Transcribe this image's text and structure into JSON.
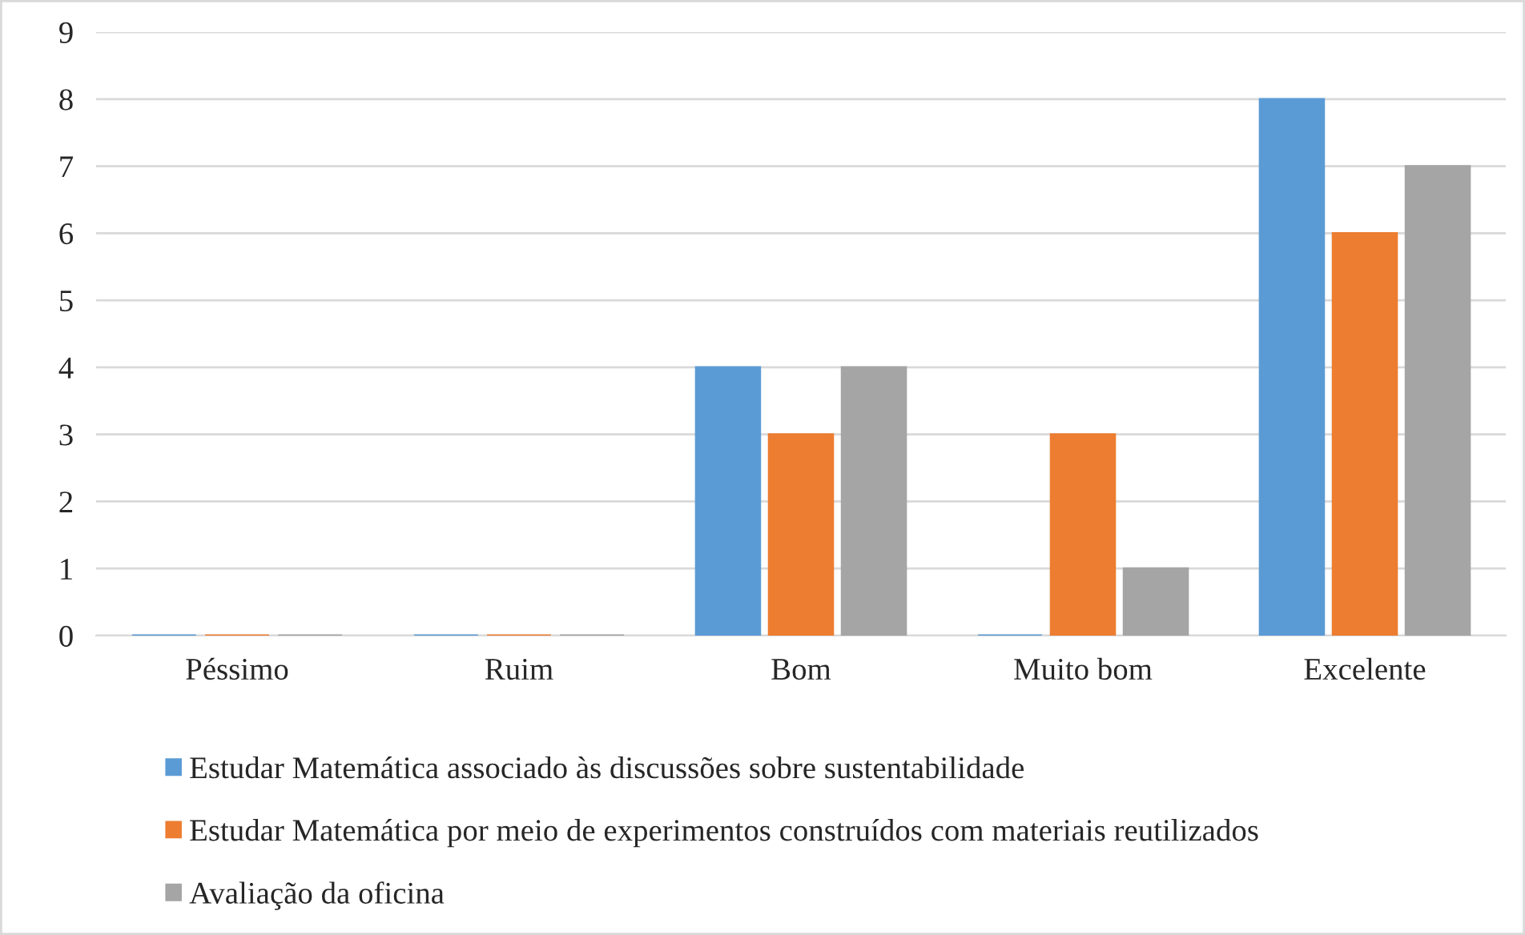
{
  "chart_data": {
    "type": "bar",
    "categories": [
      "Péssimo",
      "Ruim",
      "Bom",
      "Muito bom",
      "Excelente"
    ],
    "series": [
      {
        "name": "Estudar Matemática associado às discussões sobre sustentabilidade",
        "color": "#5b9bd5",
        "values": [
          0,
          0,
          4,
          0,
          8
        ]
      },
      {
        "name": "Estudar Matemática por meio de experimentos construídos com materiais reutilizados",
        "color": "#ed7d31",
        "values": [
          0,
          0,
          3,
          3,
          6
        ]
      },
      {
        "name": "Avaliação da oficina",
        "color": "#a5a5a5",
        "values": [
          0,
          0,
          4,
          1,
          7
        ]
      }
    ],
    "ylim": [
      0,
      9
    ],
    "yticks": [
      0,
      1,
      2,
      3,
      4,
      5,
      6,
      7,
      8,
      9
    ],
    "grid": "y",
    "legend": "bottom"
  }
}
